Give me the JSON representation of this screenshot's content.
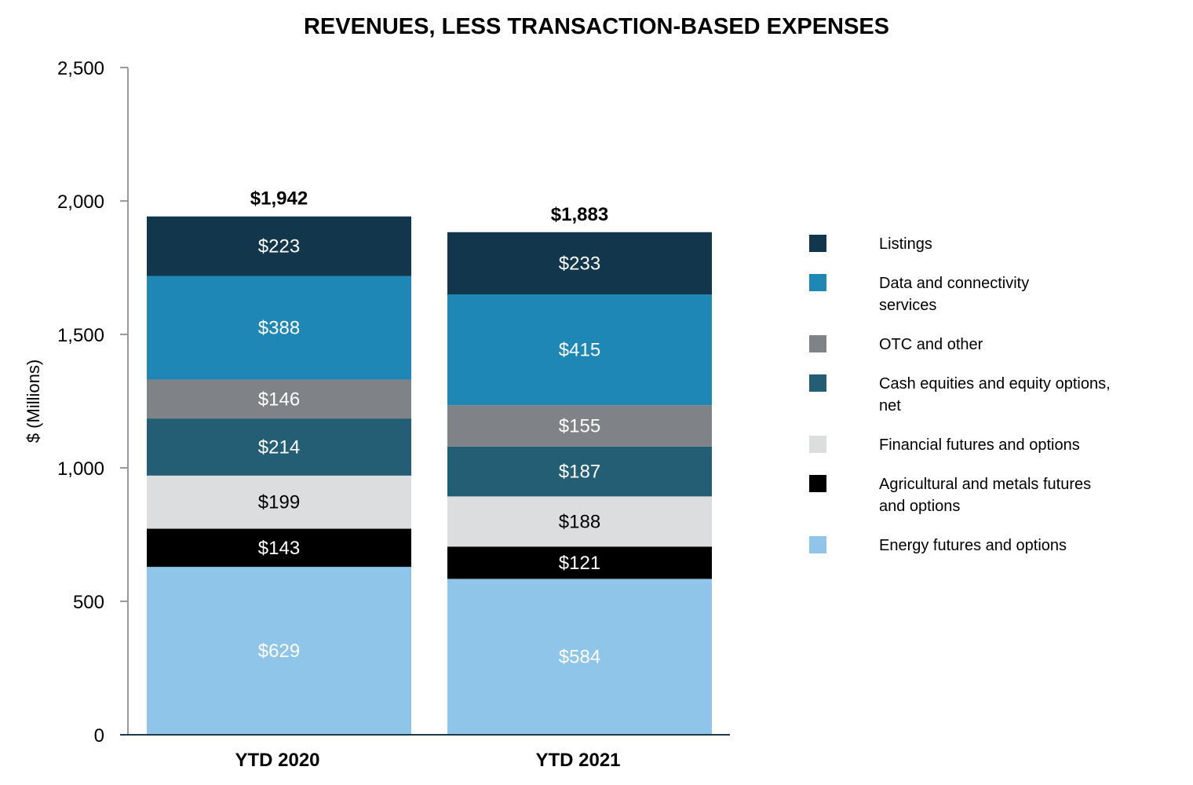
{
  "chart_data": {
    "type": "bar",
    "stacked": true,
    "title": "REVENUES, LESS TRANSACTION-BASED EXPENSES",
    "ylabel": "$ (Millions)",
    "ylim": [
      0,
      2500
    ],
    "yticks": [
      0,
      500,
      1000,
      1500,
      2000,
      2500
    ],
    "ytick_labels": [
      "0",
      "500",
      "1,000",
      "1,500",
      "2,000",
      "2,500"
    ],
    "categories": [
      "YTD 2020",
      "YTD 2021"
    ],
    "totals": [
      1942,
      1883
    ],
    "total_labels": [
      "$1,942",
      "$1,883"
    ],
    "legend_position": "right",
    "series": [
      {
        "name": "Energy futures and options",
        "color": "#8fc5e8",
        "label_color": "#ffffff",
        "values": [
          629,
          584
        ],
        "labels": [
          "$629",
          "$584"
        ]
      },
      {
        "name": "Agricultural and metals futures and options",
        "color": "#000000",
        "label_color": "#ffffff",
        "values": [
          143,
          121
        ],
        "labels": [
          "$143",
          "$121"
        ]
      },
      {
        "name": "Financial futures and options",
        "color": "#dcdddf",
        "label_color": "#000000",
        "values": [
          199,
          188
        ],
        "labels": [
          "$199",
          "$188"
        ]
      },
      {
        "name": "Cash equities and equity options, net",
        "color": "#235e74",
        "label_color": "#ffffff",
        "values": [
          214,
          187
        ],
        "labels": [
          "$214",
          "$187"
        ]
      },
      {
        "name": "OTC and other",
        "color": "#7f8287",
        "label_color": "#ffffff",
        "values": [
          146,
          155
        ],
        "labels": [
          "$146",
          "$155"
        ]
      },
      {
        "name": "Data and connectivity services",
        "color": "#1e87b6",
        "label_color": "#ffffff",
        "values": [
          388,
          415
        ],
        "labels": [
          "$388",
          "$415"
        ]
      },
      {
        "name": "Listings",
        "color": "#12364b",
        "label_color": "#ffffff",
        "values": [
          223,
          233
        ],
        "labels": [
          "$223",
          "$233"
        ]
      }
    ],
    "legend": [
      {
        "series_index": 6,
        "lines": [
          "Listings"
        ]
      },
      {
        "series_index": 5,
        "lines": [
          "Data and connectivity",
          "services"
        ]
      },
      {
        "series_index": 4,
        "lines": [
          "OTC and other"
        ]
      },
      {
        "series_index": 3,
        "lines": [
          "Cash equities and equity options,",
          "net"
        ]
      },
      {
        "series_index": 2,
        "lines": [
          "Financial futures and options"
        ]
      },
      {
        "series_index": 1,
        "lines": [
          "Agricultural and metals futures",
          "and options"
        ]
      },
      {
        "series_index": 0,
        "lines": [
          "Energy futures and options"
        ]
      }
    ]
  }
}
